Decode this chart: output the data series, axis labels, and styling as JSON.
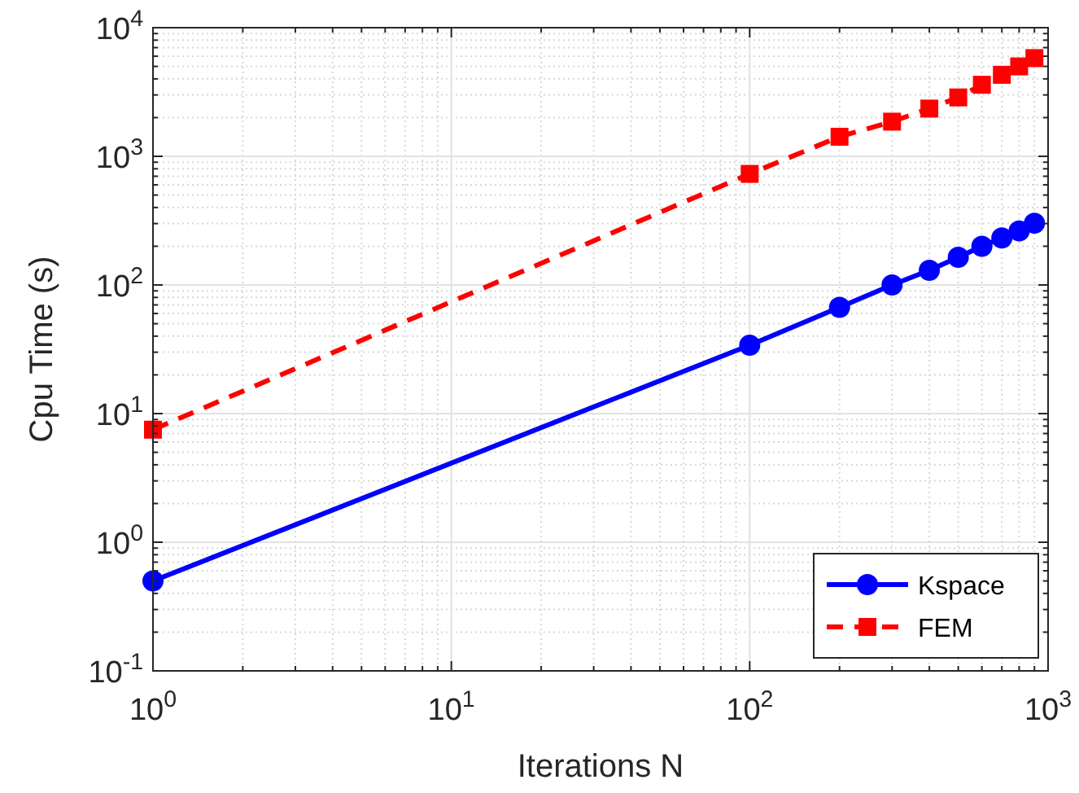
{
  "chart_data": {
    "type": "line",
    "xlabel": "Iterations N",
    "ylabel": "Cpu Time (s)",
    "log": "xy",
    "grid": true,
    "legend": "bottom right",
    "xlim": [
      1,
      1000
    ],
    "xticks": [
      {
        "value": 1,
        "label": "10$^{0}$"
      },
      {
        "value": 10,
        "label": "10$^{1}$"
      },
      {
        "value": 100,
        "label": "10$^{2}$"
      },
      {
        "value": 1000,
        "label": "10$^{3}$"
      }
    ],
    "ylim": [
      0.1,
      10000
    ],
    "yticks": [
      {
        "value": 0.1,
        "label": "10$^{-1}$"
      },
      {
        "value": 1,
        "label": "10$^{0}$"
      },
      {
        "value": 10,
        "label": "10$^{1}$"
      },
      {
        "value": 100,
        "label": "10$^{2}$"
      },
      {
        "value": 1000,
        "label": "10$^{3}$"
      },
      {
        "value": 10000,
        "label": "10$^{4}$"
      }
    ],
    "x": [
      1,
      100,
      200,
      300,
      400,
      500,
      600,
      700,
      800,
      900
    ],
    "series": [
      {
        "name": "Kspace",
        "color": "#0000ff",
        "marker": "circle",
        "line_style": "solid",
        "values": [
          0.5,
          34,
          67,
          100,
          130,
          164,
          200,
          232,
          263,
          302
        ]
      },
      {
        "name": "FEM",
        "color": "#ff0000",
        "marker": "square",
        "line_style": "dashed",
        "values": [
          7.5,
          730,
          1420,
          1860,
          2350,
          2870,
          3600,
          4300,
          5000,
          5800
        ]
      }
    ]
  }
}
